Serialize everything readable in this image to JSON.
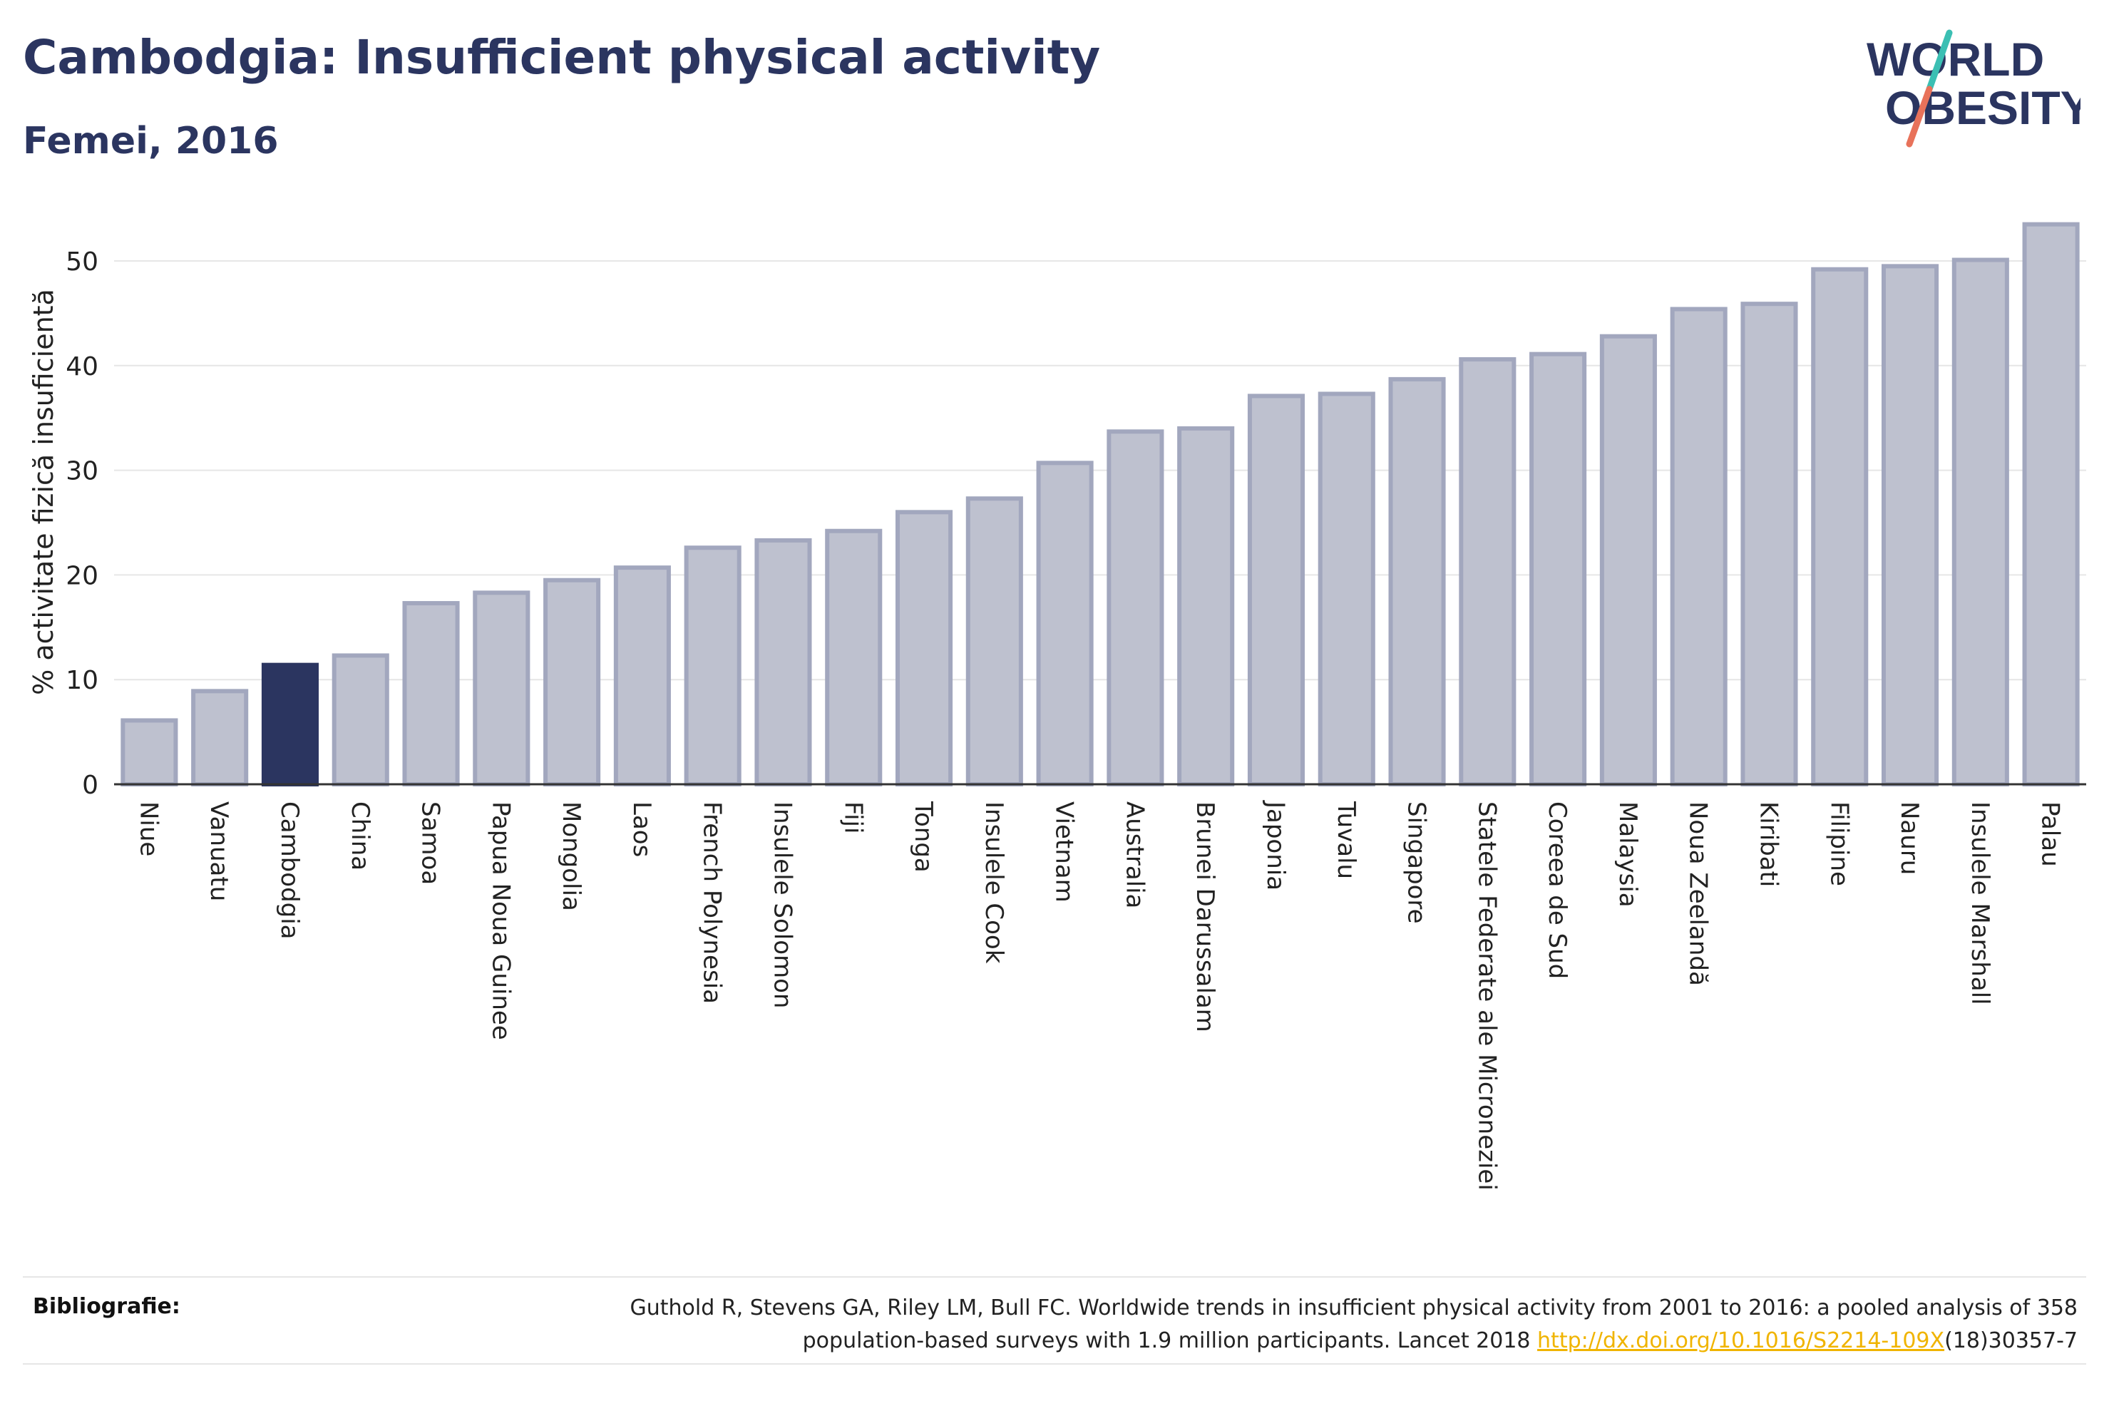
{
  "header": {
    "title": "Cambodgia: Insufficient physical activity",
    "subtitle": "Femei, 2016"
  },
  "logo": {
    "line1": "WORLD",
    "line2": "OBESITY",
    "icon": "world-obesity-logo",
    "colors": {
      "text": "#2b3560",
      "slash_top": "#3bbfb3",
      "slash_bottom": "#e8725a"
    }
  },
  "chart_data": {
    "type": "bar",
    "ylabel": "% activitate fizică insuficientă",
    "xlabel": "",
    "ylim": [
      0,
      55
    ],
    "yticks": [
      0,
      10,
      20,
      30,
      40,
      50
    ],
    "grid": true,
    "highlight": "Cambodgia",
    "colors": {
      "bar": "#bec1cf",
      "bar_border": "#a2a7be",
      "highlight": "#2b3560",
      "grid": "#e6e6e6",
      "axis": "#333333"
    },
    "categories": [
      "Niue",
      "Vanuatu",
      "Cambodgia",
      "China",
      "Samoa",
      "Papua Noua Guinee",
      "Mongolia",
      "Laos",
      "French Polynesia",
      "Insulele Solomon",
      "Fiji",
      "Tonga",
      "Insulele Cook",
      "Vietnam",
      "Australia",
      "Brunei Darussalam",
      "Japonia",
      "Tuvalu",
      "Singapore",
      "Statele Federate ale Microneziei",
      "Coreea de Sud",
      "Malaysia",
      "Noua Zeelandă",
      "Kiribati",
      "Filipine",
      "Nauru",
      "Insulele Marshall",
      "Palau"
    ],
    "values": [
      6.1,
      8.9,
      11.4,
      12.3,
      17.3,
      18.3,
      19.5,
      20.7,
      22.6,
      23.3,
      24.2,
      26.0,
      27.3,
      30.7,
      33.7,
      34.0,
      37.1,
      37.3,
      38.7,
      40.6,
      41.1,
      42.8,
      45.4,
      45.9,
      49.2,
      49.5,
      50.1,
      53.5
    ]
  },
  "footer": {
    "label": "Bibliografie:",
    "citation_line1": "Guthold R, Stevens GA, Riley LM, Bull FC. Worldwide trends in insufficient physical activity from 2001 to 2016: a pooled analysis of 358",
    "citation_line2_prefix": "population-based surveys with 1.9 million participants. Lancet 2018 ",
    "citation_link": "http://dx.doi.org/10.1016/S2214-109X",
    "citation_line2_suffix": "(18)30357-7"
  }
}
